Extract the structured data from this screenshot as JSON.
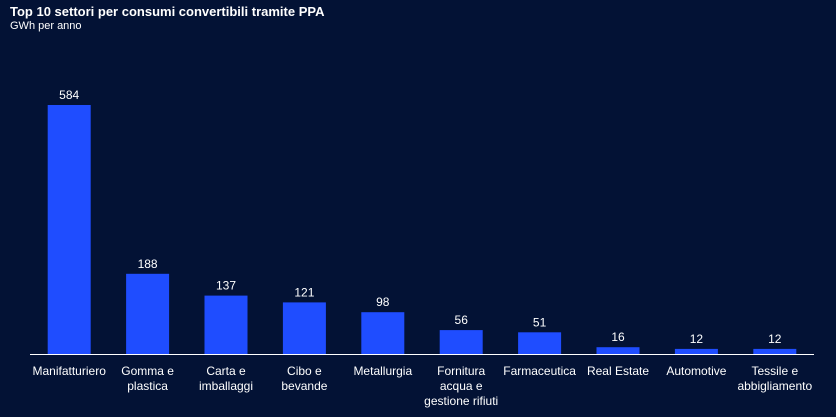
{
  "chart_data": {
    "type": "bar",
    "title": "Top 10 settori per consumi convertibili tramite PPA",
    "subtitle": "GWh per anno",
    "xlabel": "",
    "ylabel": "",
    "ylim": [
      0,
      584
    ],
    "grid": false,
    "legend": "none",
    "bar_color": "#1f4dff",
    "background_color": "#031235",
    "axis_color": "#ffffff",
    "categories": [
      [
        "Manifatturiero"
      ],
      [
        "Gomma e",
        "plastica"
      ],
      [
        "Carta e",
        "imballaggi"
      ],
      [
        "Cibo e",
        "bevande"
      ],
      [
        "Metallurgia"
      ],
      [
        "Fornitura",
        "acqua e",
        "gestione rifiuti"
      ],
      [
        "Farmaceutica"
      ],
      [
        "Real Estate"
      ],
      [
        "Automotive"
      ],
      [
        "Tessile e",
        "abbigliamento"
      ]
    ],
    "values": [
      584,
      188,
      137,
      121,
      98,
      56,
      51,
      16,
      12,
      12
    ]
  }
}
